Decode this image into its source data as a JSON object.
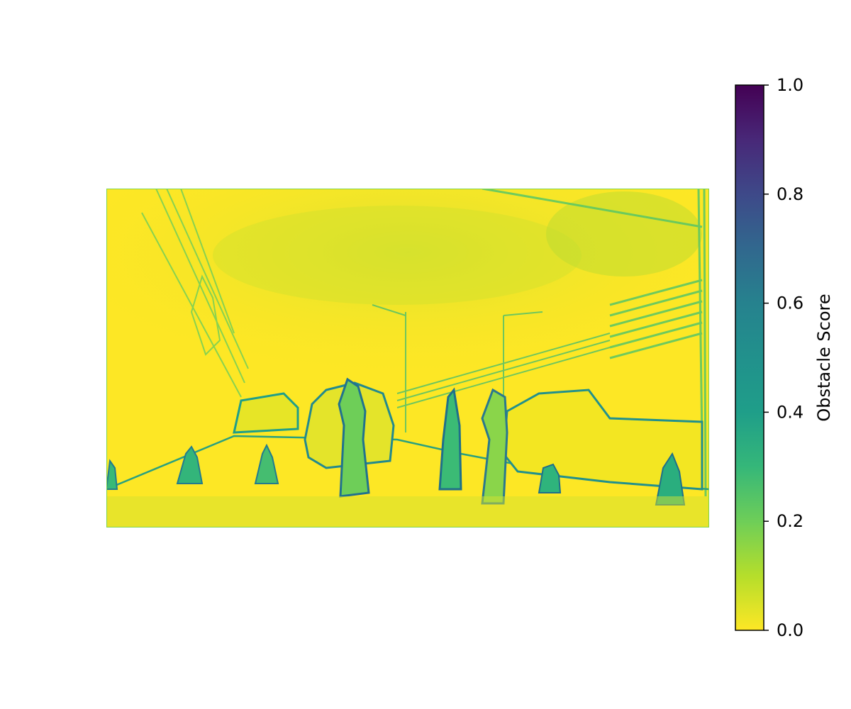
{
  "chart_data": {
    "type": "heatmap",
    "colormap": "viridis_r",
    "colorbar": {
      "label": "Obstacle Score",
      "range": [
        0.0,
        1.0
      ],
      "ticks": [
        0.0,
        0.2,
        0.4,
        0.6,
        0.8,
        1.0
      ],
      "tick_labels": [
        "0.0",
        "0.2",
        "0.4",
        "0.6",
        "0.8",
        "1.0"
      ]
    },
    "axes_visible": false,
    "colors": {
      "low": "#fde725",
      "mid": "#21918c",
      "high": "#440154"
    }
  }
}
